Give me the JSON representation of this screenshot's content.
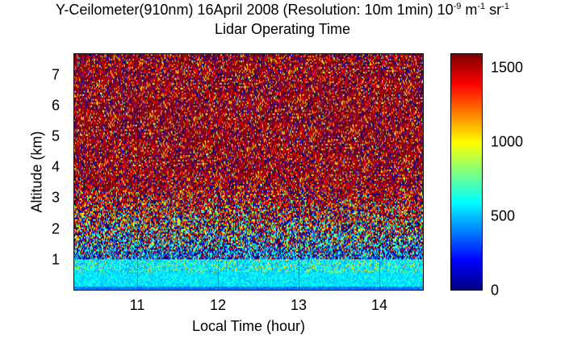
{
  "chart_data": {
    "type": "heatmap",
    "title_line1": "Y-Ceilometer(910nm) 16April 2008 (Resolution: 10m 1min) 10",
    "title_exp1": "-9",
    "title_unit1": " m",
    "title_exp2": "-1",
    "title_unit2": " sr",
    "title_exp3": "-1",
    "title_line2": "Lidar Operating Time",
    "xlabel": "Local Time (hour)",
    "ylabel": "Altitude (km)",
    "xlim": [
      10.21,
      14.55
    ],
    "ylim": [
      0,
      7.7
    ],
    "clim": [
      0,
      1600
    ],
    "colormap": "jet",
    "x_ticks": [
      11,
      12,
      13,
      14
    ],
    "y_ticks": [
      1,
      2,
      3,
      4,
      5,
      6,
      7
    ],
    "colorbar_ticks": [
      0,
      500,
      1000,
      1500
    ],
    "profile_description_values": {
      "near_surface_km": [
        0.05,
        0.6
      ],
      "near_surface_level": 550,
      "noise_above_km": 1.0
    }
  }
}
